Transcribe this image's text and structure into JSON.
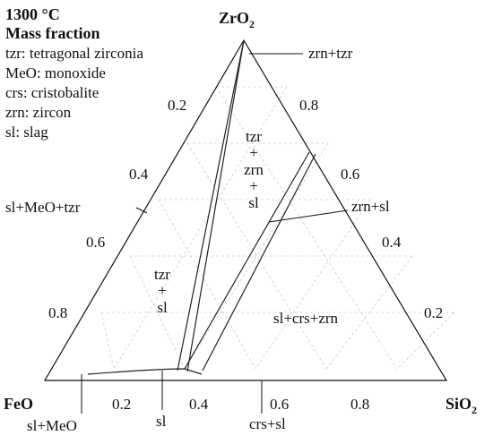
{
  "legend": {
    "temperature": "1300 °C",
    "basis": "Mass fraction",
    "abbreviations": [
      "tzr: tetragonal zirconia",
      "MeO: monoxide",
      "crs: cristobalite",
      "zrn: zircon",
      "sl: slag"
    ]
  },
  "corners": {
    "top": "ZrO",
    "top_sub": "2",
    "left": "FeO",
    "right": "SiO",
    "right_sub": "2"
  },
  "ticks": {
    "left_edge": [
      "0.2",
      "0.4",
      "0.6",
      "0.8"
    ],
    "right_edge": [
      "0.8",
      "0.6",
      "0.4",
      "0.2"
    ],
    "bottom_edge": [
      "0.2",
      "0.4",
      "0.6",
      "0.8"
    ]
  },
  "regions": {
    "tzr_zrn_sl": [
      "tzr",
      "+",
      "zrn",
      "+",
      "sl"
    ],
    "tzr_sl": [
      "tzr",
      "+",
      "sl"
    ],
    "sl_crs_zrn": "sl+crs+zrn"
  },
  "callouts": {
    "zrn_tzr": "zrn+tzr",
    "zrn_sl": "zrn+sl",
    "sl_meo_tzr": "sl+MeO+tzr",
    "sl_meo": "sl+MeO",
    "sl": "sl",
    "crs_sl": "crs+sl"
  },
  "colors": {
    "lines": "#111111",
    "grid": "#b8b8b8",
    "background": "#ffffff"
  }
}
